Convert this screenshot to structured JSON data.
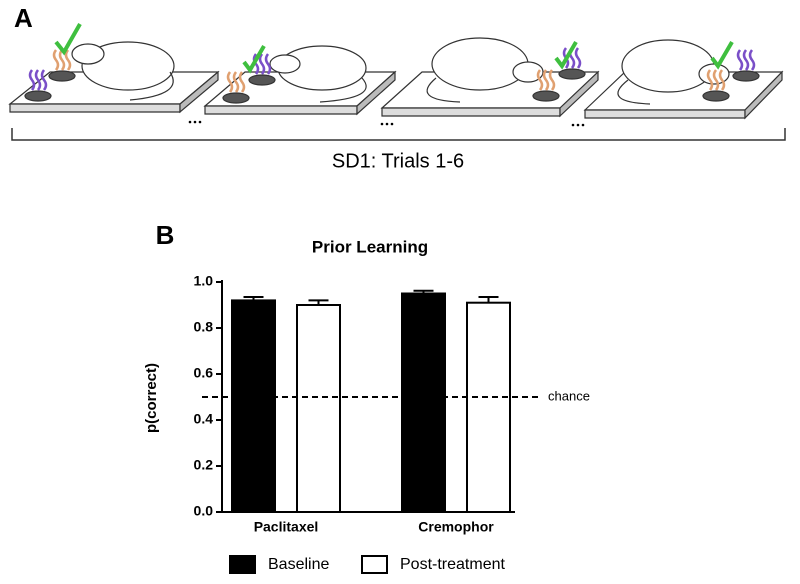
{
  "diagram": {
    "panel_label": "A",
    "caption": "SD1: Trials 1-6"
  },
  "chart_data": {
    "type": "bar",
    "panel_label": "B",
    "title": "Prior Learning",
    "ylabel": "p(correct)",
    "categories": [
      "Paclitaxel",
      "Cremophor"
    ],
    "series": [
      {
        "name": "Baseline",
        "color": "#000000",
        "values": [
          0.92,
          0.95
        ],
        "errors": [
          0.015,
          0.012
        ]
      },
      {
        "name": "Post-treatment",
        "color": "#ffffff",
        "values": [
          0.9,
          0.91
        ],
        "errors": [
          0.02,
          0.025
        ]
      }
    ],
    "ylim": [
      0,
      1.0
    ],
    "yticks": [
      {
        "value": 0,
        "label": "0.0"
      },
      {
        "value": 0.2,
        "label": "0.2"
      },
      {
        "value": 0.4,
        "label": "0.4"
      },
      {
        "value": 0.6,
        "label": "0.6"
      },
      {
        "value": 0.8,
        "label": "0.8"
      },
      {
        "value": 1.0,
        "label": "1.0"
      }
    ],
    "reference_line": {
      "value": 0.5,
      "label": "chance"
    }
  }
}
